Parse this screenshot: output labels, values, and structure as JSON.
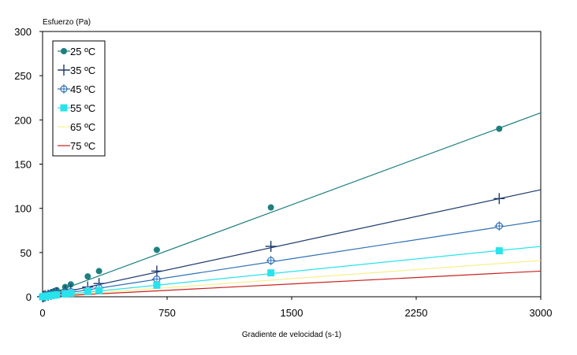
{
  "chart_data": {
    "type": "scatter",
    "title": "",
    "xlabel": "Gradiente de velocidad (s-1)",
    "ylabel": "Esfuerzo (Pa)",
    "xlim": [
      0,
      3000
    ],
    "ylim": [
      0,
      300
    ],
    "xticks": [
      0,
      750,
      1500,
      2250,
      3000
    ],
    "yticks": [
      0,
      50,
      100,
      150,
      200,
      250,
      300
    ],
    "grid": false,
    "legend_position": "top-left",
    "series": [
      {
        "name": "25 ºC",
        "color": "#1e7f7f",
        "marker": "filled-circle",
        "points": [
          [
            0,
            0
          ],
          [
            5,
            0.6
          ],
          [
            10,
            1.2
          ],
          [
            17,
            1.8
          ],
          [
            34,
            3.2
          ],
          [
            51,
            4.6
          ],
          [
            68,
            6
          ],
          [
            85,
            7.5
          ],
          [
            136,
            11
          ],
          [
            170,
            14
          ],
          [
            272,
            23
          ],
          [
            340,
            29
          ],
          [
            688,
            53
          ],
          [
            1375,
            101
          ],
          [
            2750,
            190
          ]
        ],
        "fit": [
          [
            0,
            0
          ],
          [
            3000,
            208
          ]
        ]
      },
      {
        "name": "35 ºC",
        "color": "#1f3a6e",
        "marker": "plus",
        "points": [
          [
            0,
            0
          ],
          [
            5,
            0.3
          ],
          [
            10,
            0.7
          ],
          [
            17,
            1.1
          ],
          [
            34,
            1.8
          ],
          [
            51,
            2.6
          ],
          [
            68,
            3.4
          ],
          [
            85,
            4.2
          ],
          [
            136,
            6.3
          ],
          [
            170,
            8
          ],
          [
            272,
            11
          ],
          [
            340,
            15
          ],
          [
            688,
            29
          ],
          [
            1375,
            57
          ],
          [
            2750,
            111
          ]
        ],
        "fit": [
          [
            0,
            0
          ],
          [
            3000,
            121
          ]
        ]
      },
      {
        "name": "45 ºC",
        "color": "#2e6fb3",
        "marker": "open-star",
        "points": [
          [
            0,
            0
          ],
          [
            5,
            0.2
          ],
          [
            10,
            0.5
          ],
          [
            17,
            0.8
          ],
          [
            34,
            1.4
          ],
          [
            51,
            2
          ],
          [
            68,
            2.6
          ],
          [
            85,
            3.2
          ],
          [
            136,
            4.6
          ],
          [
            170,
            5.8
          ],
          [
            272,
            8
          ],
          [
            340,
            10
          ],
          [
            688,
            20
          ],
          [
            1375,
            41
          ],
          [
            2750,
            80
          ]
        ],
        "fit": [
          [
            0,
            0
          ],
          [
            3000,
            86
          ]
        ]
      },
      {
        "name": "55 ºC",
        "color": "#29e3ec",
        "marker": "filled-square",
        "points": [
          [
            0,
            0
          ],
          [
            5,
            0.1
          ],
          [
            10,
            0.3
          ],
          [
            17,
            0.5
          ],
          [
            34,
            0.9
          ],
          [
            51,
            1.3
          ],
          [
            68,
            1.7
          ],
          [
            85,
            2.1
          ],
          [
            136,
            3.1
          ],
          [
            170,
            3.9
          ],
          [
            272,
            6
          ],
          [
            340,
            7
          ],
          [
            688,
            13
          ],
          [
            1375,
            27
          ],
          [
            2750,
            52
          ]
        ],
        "fit": [
          [
            0,
            0
          ],
          [
            3000,
            57
          ]
        ]
      },
      {
        "name": "65 ºC",
        "color": "#f7ef87",
        "marker": "line",
        "points": [],
        "fit": [
          [
            0,
            0
          ],
          [
            3000,
            41
          ]
        ]
      },
      {
        "name": "75 ºC",
        "color": "#c8221f",
        "marker": "line",
        "points": [],
        "fit": [
          [
            0,
            0
          ],
          [
            3000,
            29
          ]
        ]
      }
    ]
  }
}
